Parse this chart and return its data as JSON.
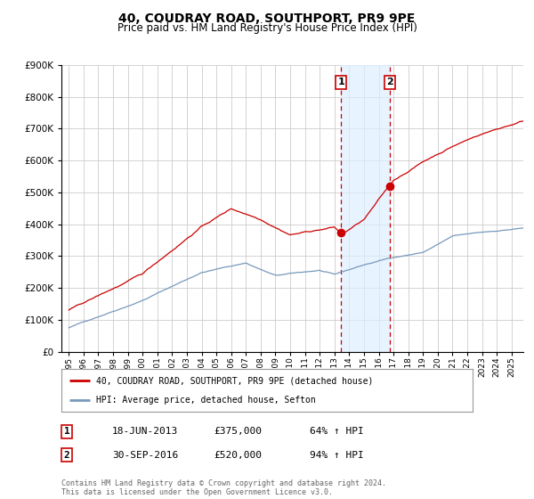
{
  "title": "40, COUDRAY ROAD, SOUTHPORT, PR9 9PE",
  "subtitle": "Price paid vs. HM Land Registry's House Price Index (HPI)",
  "ylim": [
    0,
    900000
  ],
  "yticks": [
    0,
    100000,
    200000,
    300000,
    400000,
    500000,
    600000,
    700000,
    800000,
    900000
  ],
  "grid_color": "#cccccc",
  "legend_line1": "40, COUDRAY ROAD, SOUTHPORT, PR9 9PE (detached house)",
  "legend_line2": "HPI: Average price, detached house, Sefton",
  "red_line_color": "#cc0000",
  "blue_line_color": "#7799bb",
  "sale1_date": "18-JUN-2013",
  "sale1_price": "£375,000",
  "sale1_hpi": "64% ↑ HPI",
  "sale2_date": "30-SEP-2016",
  "sale2_price": "£520,000",
  "sale2_hpi": "94% ↑ HPI",
  "footer": "Contains HM Land Registry data © Crown copyright and database right 2024.\nThis data is licensed under the Open Government Licence v3.0.",
  "shade_color": "#ddeeff",
  "vline_color": "#cc0000",
  "sale1_x": 2013.46,
  "sale1_y": 375000,
  "sale2_x": 2016.75,
  "sale2_y": 520000,
  "shade_x1": 2013.46,
  "shade_x2": 2016.75,
  "xlim_left": 1994.5,
  "xlim_right": 2025.8
}
